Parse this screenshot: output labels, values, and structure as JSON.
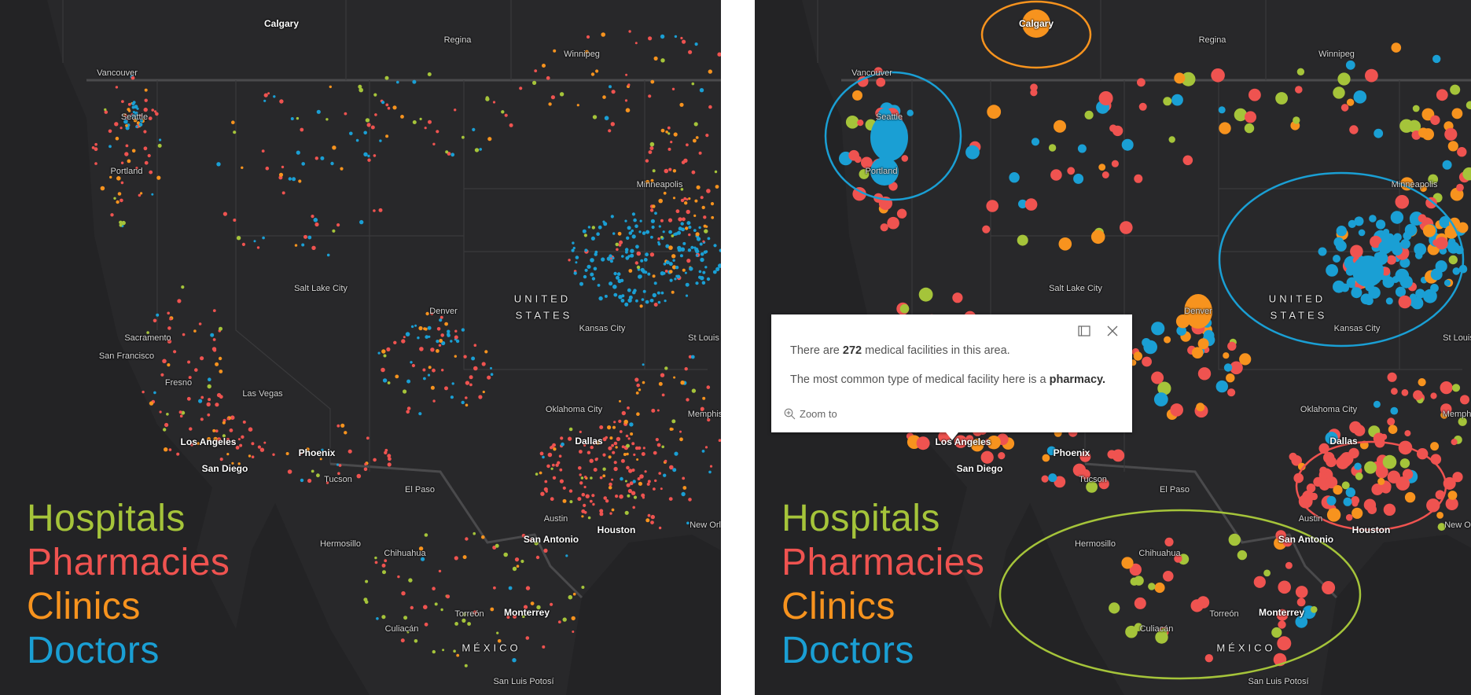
{
  "legend": {
    "items": [
      {
        "label": "Hospitals",
        "color": "#a5c43a"
      },
      {
        "label": "Pharmacies",
        "color": "#ef5350"
      },
      {
        "label": "Clinics",
        "color": "#f7931e"
      },
      {
        "label": "Doctors",
        "color": "#1a9fd4"
      }
    ]
  },
  "map": {
    "background": "#232325",
    "cities": {
      "calgary": "Calgary",
      "regina": "Regina",
      "winnipeg": "Winnipeg",
      "vancouver": "Vancouver",
      "seattle": "Seattle",
      "portland": "Portland",
      "minneapolis": "Minneapolis",
      "salt_lake_city": "Salt Lake City",
      "denver": "Denver",
      "united": "UNITED",
      "states": "STATES",
      "kansas_city": "Kansas City",
      "st_louis": "St Louis",
      "sacramento": "Sacramento",
      "san_francisco": "San Francisco",
      "fresno": "Fresno",
      "las_vegas": "Las Vegas",
      "oklahoma_city": "Oklahoma City",
      "memphis": "Memphis",
      "los_angeles": "Los Angeles",
      "phoenix": "Phoenix",
      "san_diego": "San Diego",
      "dallas": "Dallas",
      "tucson": "Tucson",
      "el_paso": "El Paso",
      "austin": "Austin",
      "houston": "Houston",
      "san_antonio": "San Antonio",
      "new_orleans": "New Orleans",
      "hermosillo": "Hermosillo",
      "chihuahua": "Chihuahua",
      "torreon": "Torreón",
      "monterrey": "Monterrey",
      "culiacan": "Culiacán",
      "mexico": "MÉXICO",
      "san_luis_potosi": "San Luis Potosí"
    }
  },
  "highlight_rings": [
    {
      "area": "Calgary",
      "color": "#f7931e"
    },
    {
      "area": "Seattle-Portland",
      "color": "#1a9fd4"
    },
    {
      "area": "Great Plains",
      "color": "#1a9fd4"
    },
    {
      "area": "Dallas-Houston",
      "color": "#ef5350"
    },
    {
      "area": "Northern Mexico",
      "color": "#a5c43a"
    }
  ],
  "popup": {
    "line1_pre": "There are ",
    "count": "272",
    "line1_post": " medical facilities in this area.",
    "line2_pre": "The most common type of medical facility here is a ",
    "type": "pharmacy.",
    "zoom_to": "Zoom to",
    "dock_icon": "dock-icon",
    "close_icon": "close-icon"
  }
}
